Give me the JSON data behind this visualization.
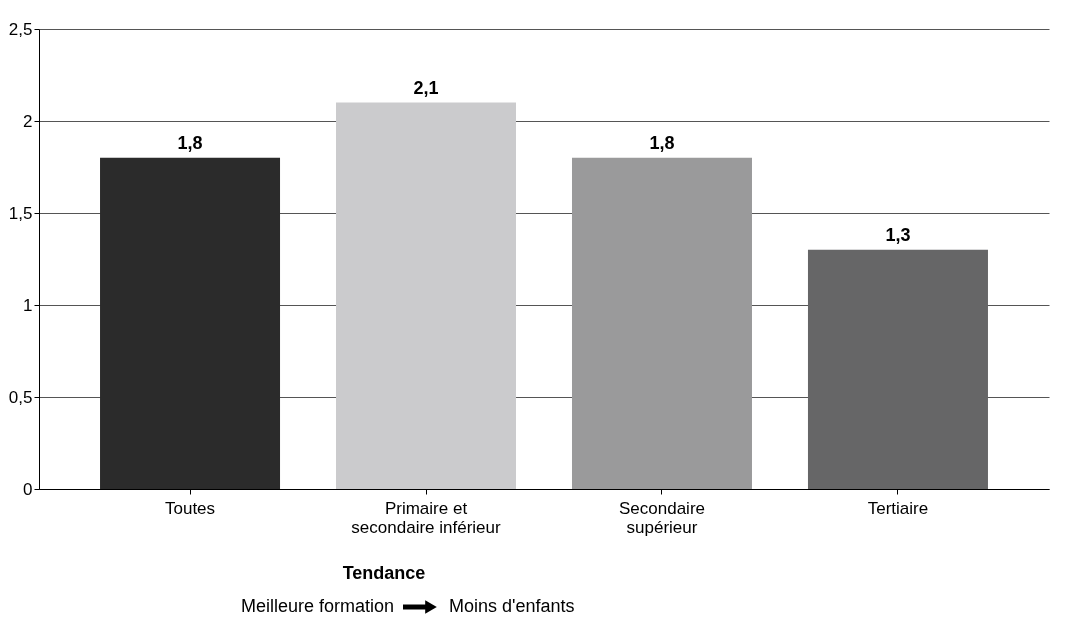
{
  "chart_data": {
    "type": "bar",
    "categories": [
      "Toutes",
      "Primaire et\nsecondaire inférieur",
      "Secondaire\nsupérieur",
      "Tertiaire"
    ],
    "values": [
      1.8,
      2.1,
      1.8,
      1.3
    ],
    "colors": [
      "#2b2b2b",
      "#cbcbcd",
      "#9a9a9b",
      "#666667"
    ],
    "value_labels": [
      "1,8",
      "2,1",
      "1,8",
      "1,3"
    ],
    "ylim": [
      0,
      2.5
    ],
    "yticks": [
      0,
      {
        "value": 0.5,
        "label": "0,5"
      },
      1,
      {
        "value": 1.5,
        "label": "1,5"
      },
      2,
      {
        "value": 2.5,
        "label": "2,5"
      }
    ],
    "grid": "y",
    "annotations": [
      "Tendance",
      "Meilleure formation",
      "Moins d'enfants"
    ]
  }
}
